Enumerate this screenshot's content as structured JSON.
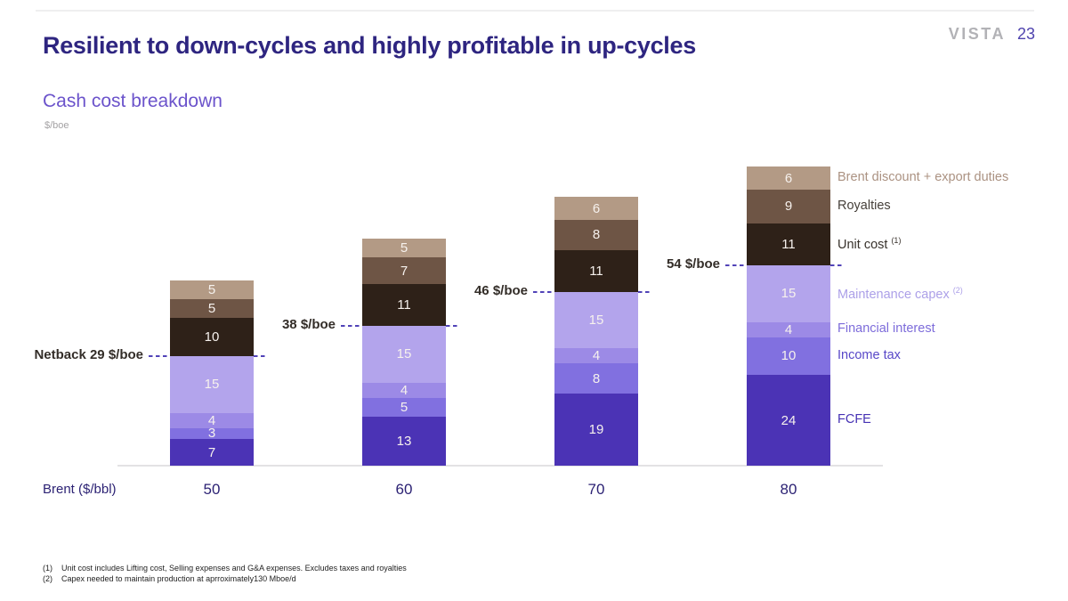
{
  "header": {
    "title": "Resilient to down-cycles and highly profitable in up-cycles",
    "logo": "VISTA",
    "page_number": "23"
  },
  "chart": {
    "subtitle": "Cash cost breakdown",
    "unit_label": "$/boe"
  },
  "chart_data": {
    "type": "bar",
    "stacked": true,
    "title": "Cash cost breakdown",
    "ylabel": "$/boe",
    "xlabel": "Brent ($/bbl)",
    "categories": [
      "50",
      "60",
      "70",
      "80"
    ],
    "series": [
      {
        "name": "Brent discount + export duties",
        "sup": "",
        "color": "#b39a85",
        "legend_color": "#ab9282",
        "values": [
          5,
          5,
          6,
          6
        ]
      },
      {
        "name": "Royalties",
        "sup": "",
        "color": "#6e5545",
        "legend_color": "#46403a",
        "values": [
          5,
          7,
          8,
          9
        ]
      },
      {
        "name": "Unit cost",
        "sup": "(1)",
        "color": "#2e2118",
        "legend_color": "#38322c",
        "values": [
          10,
          11,
          11,
          11
        ]
      },
      {
        "name": "Maintenance capex",
        "sup": "(2)",
        "color": "#b3a4ec",
        "legend_color": "#aca0e8",
        "values": [
          15,
          15,
          15,
          15
        ]
      },
      {
        "name": "Financial interest",
        "sup": "",
        "color": "#9c8ae6",
        "legend_color": "#7d6cda",
        "values": [
          4,
          4,
          4,
          4
        ]
      },
      {
        "name": "Income tax",
        "sup": "",
        "color": "#8170e0",
        "legend_color": "#5847c8",
        "values": [
          3,
          5,
          8,
          10
        ]
      },
      {
        "name": "FCFE",
        "sup": "",
        "color": "#4b33b5",
        "legend_color": "#4632b4",
        "values": [
          7,
          13,
          19,
          24
        ]
      }
    ],
    "netback_annotations": [
      "Netback 29 $/boe",
      "38 $/boe",
      "46 $/boe",
      "54 $/boe"
    ],
    "netback_above_series_index": 3,
    "axis_range_hint": [
      0,
      80
    ],
    "legend_position": "right",
    "grid": false,
    "value_labels": true
  },
  "annotation_colors": {
    "dash": "#5143b8",
    "netback_text": "#332d28"
  },
  "footnotes": [
    {
      "num": "(1)",
      "text": "Unit cost includes Lifting cost, Selling expenses and G&A expenses. Excludes taxes and royalties"
    },
    {
      "num": "(2)",
      "text": "Capex needed to maintain production at aprroximately130 Mboe/d"
    }
  ]
}
